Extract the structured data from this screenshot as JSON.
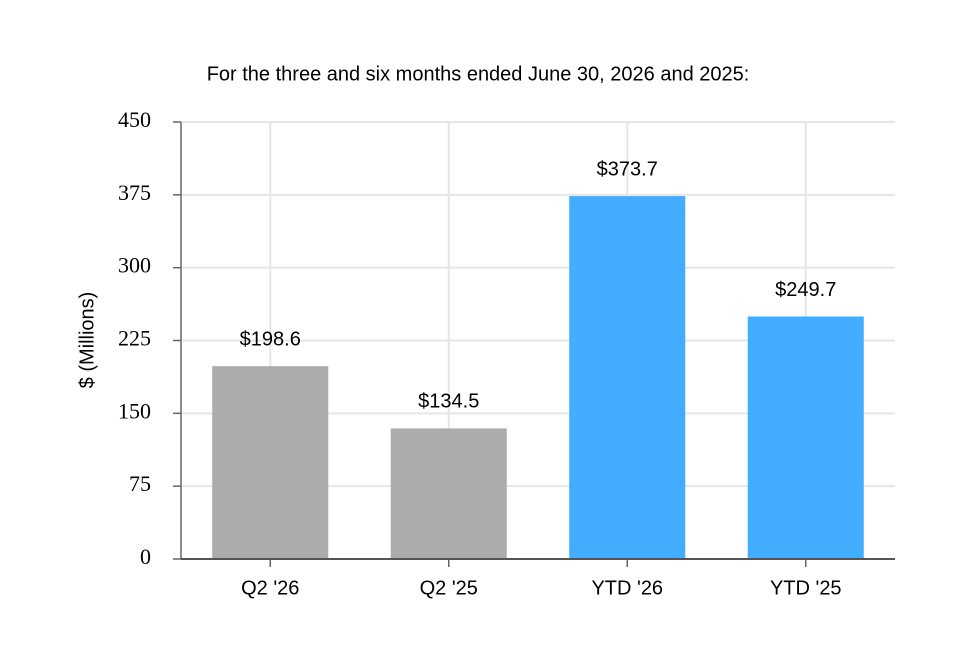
{
  "chart_data": {
    "type": "bar",
    "title": "For the three and six months ended June 30, 2026 and 2025:",
    "y_label": "$ (Millions)",
    "categories": [
      "Q2 '26",
      "Q2 '25",
      "YTD '26",
      "YTD '25"
    ],
    "values": [
      198.6,
      134.5,
      373.7,
      249.7
    ],
    "value_labels": [
      "$198.6",
      "$134.5",
      "$373.7",
      "$249.7"
    ],
    "colors": [
      "#acacac",
      "#acacac",
      "#42acff",
      "#42acff"
    ],
    "ylim": [
      0,
      450
    ],
    "yticks": [
      0,
      75,
      150,
      225,
      300,
      375,
      450
    ],
    "grid": true
  }
}
